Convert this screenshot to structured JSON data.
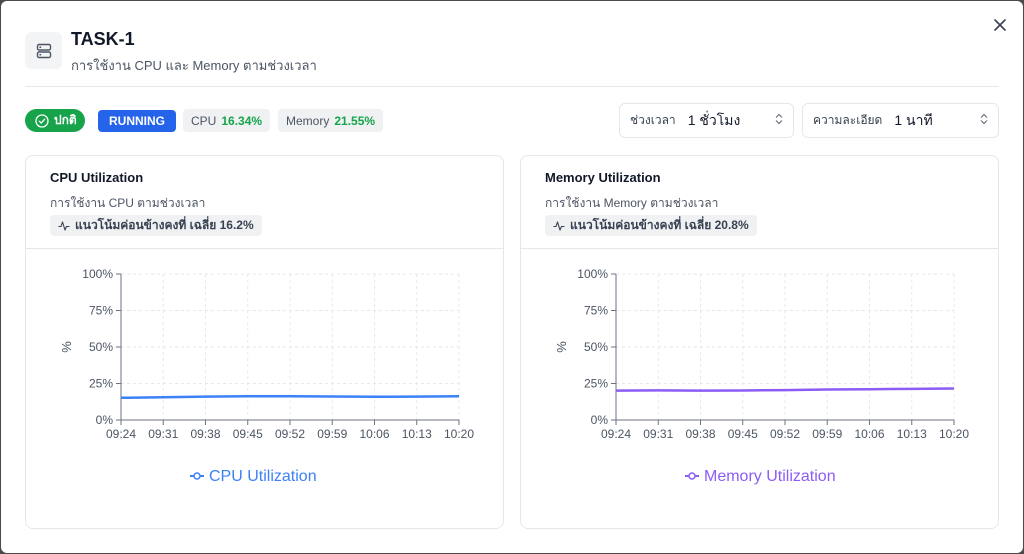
{
  "header": {
    "title": "TASK-1",
    "subtitle": "การใช้งาน CPU และ Memory ตามช่วงเวลา",
    "icon": "server-icon",
    "close_icon": "close-icon"
  },
  "status": {
    "health_label": "ปกติ",
    "state_label": "RUNNING",
    "cpu_label": "CPU",
    "cpu_value": "16.34%",
    "memory_label": "Memory",
    "memory_value": "21.55%"
  },
  "controls": {
    "range_label": "ช่วงเวลา",
    "range_value": "1 ชั่วโมง",
    "resolution_label": "ความละเอียด",
    "resolution_value": "1 นาที"
  },
  "cards": [
    {
      "title": "CPU Utilization",
      "subtitle": "การใช้งาน CPU ตามช่วงเวลา",
      "trend": "แนวโน้มค่อนข้างคงที่ เฉลี่ย 16.2%",
      "legend": "CPU Utilization",
      "color": "#3b82f6"
    },
    {
      "title": "Memory Utilization",
      "subtitle": "การใช้งาน Memory ตามช่วงเวลา",
      "trend": "แนวโน้มค่อนข้างคงที่ เฉลี่ย 20.8%",
      "legend": "Memory Utilization",
      "color": "#8b5cf6"
    }
  ],
  "chart_data": [
    {
      "type": "line",
      "ylabel": "%",
      "yticks": [
        "100%",
        "75%",
        "50%",
        "25%",
        "0%"
      ],
      "ylim": [
        0,
        100
      ],
      "x": [
        "09:24",
        "09:31",
        "09:38",
        "09:45",
        "09:52",
        "09:59",
        "10:06",
        "10:13",
        "10:20"
      ],
      "series": [
        {
          "name": "CPU Utilization",
          "values": [
            15.2,
            15.6,
            16.0,
            16.3,
            16.3,
            16.1,
            15.9,
            16.0,
            16.3
          ]
        }
      ],
      "grid": true,
      "legend": "bottom"
    },
    {
      "type": "line",
      "ylabel": "%",
      "yticks": [
        "100%",
        "75%",
        "50%",
        "25%",
        "0%"
      ],
      "ylim": [
        0,
        100
      ],
      "x": [
        "09:24",
        "09:31",
        "09:38",
        "09:45",
        "09:52",
        "09:59",
        "10:06",
        "10:13",
        "10:20"
      ],
      "series": [
        {
          "name": "Memory Utilization",
          "values": [
            20.1,
            20.3,
            20.1,
            20.2,
            20.5,
            20.9,
            21.1,
            21.3,
            21.6
          ]
        }
      ],
      "grid": true,
      "legend": "bottom"
    }
  ]
}
